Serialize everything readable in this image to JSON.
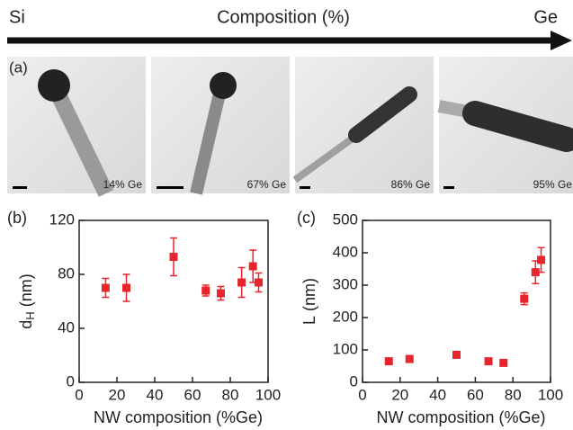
{
  "header": {
    "left": "Si",
    "title": "Composition (%)",
    "right": "Ge"
  },
  "panel_a": {
    "label": "(a)",
    "images": [
      {
        "caption": "14% Ge"
      },
      {
        "caption": "67% Ge"
      },
      {
        "caption": "86% Ge"
      },
      {
        "caption": "95% Ge"
      }
    ]
  },
  "chart_data": [
    {
      "type": "scatter",
      "panel_label": "(b)",
      "xlabel": "NW composition (%Ge)",
      "ylabel": {
        "main": "d",
        "sub": "H",
        "unit": "(nm)"
      },
      "x": [
        14,
        25,
        50,
        67,
        75,
        86,
        92,
        95
      ],
      "series": [
        {
          "color": "#e8242c",
          "values": [
            70,
            70,
            93,
            68,
            66,
            74,
            86,
            74
          ],
          "errors": [
            7,
            10,
            14,
            4,
            5,
            11,
            12,
            7
          ]
        }
      ],
      "xlim": [
        0,
        100
      ],
      "xticks": [
        0,
        20,
        40,
        60,
        80,
        100
      ],
      "ylim": [
        0,
        120
      ],
      "yticks": [
        0,
        40,
        80,
        120
      ]
    },
    {
      "type": "scatter",
      "panel_label": "(c)",
      "xlabel": "NW composition (%Ge)",
      "ylabel": {
        "main": "L",
        "unit": "(nm)"
      },
      "x": [
        14,
        25,
        50,
        67,
        75,
        86,
        92,
        95
      ],
      "series": [
        {
          "color": "#e8242c",
          "values": [
            65,
            72,
            85,
            65,
            60,
            258,
            340,
            378
          ],
          "errors": [
            8,
            10,
            8,
            5,
            5,
            18,
            35,
            38
          ]
        }
      ],
      "xlim": [
        0,
        100
      ],
      "xticks": [
        0,
        20,
        40,
        60,
        80,
        100
      ],
      "ylim": [
        0,
        500
      ],
      "yticks": [
        0,
        100,
        200,
        300,
        400,
        500
      ]
    }
  ]
}
